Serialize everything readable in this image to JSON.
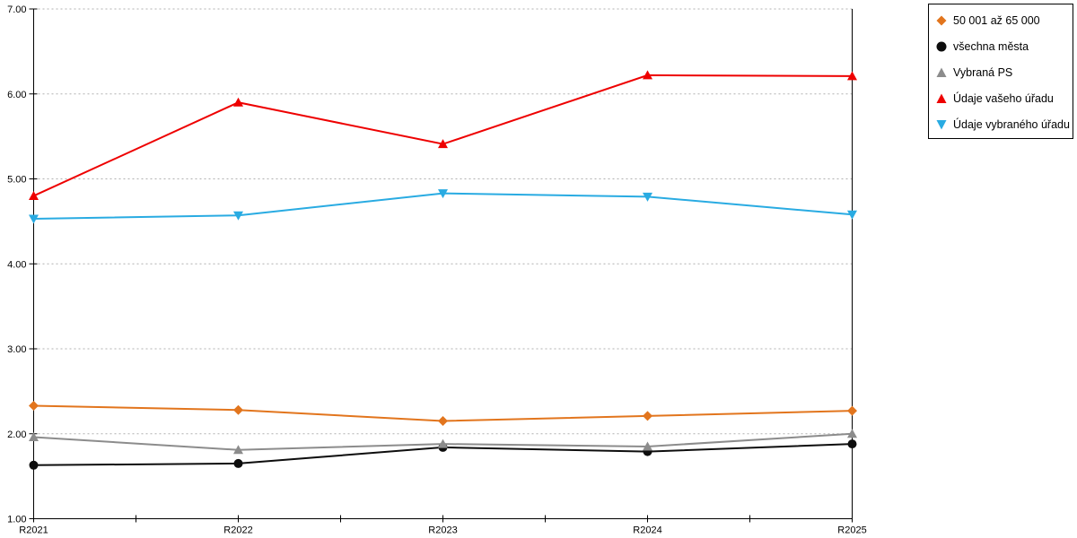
{
  "chart_data": {
    "type": "line",
    "title": "",
    "xlabel": "",
    "ylabel": "",
    "categories": [
      "R2021",
      "R2022",
      "R2023",
      "R2024",
      "R2025"
    ],
    "series": [
      {
        "name": "50 001 až 65 000",
        "marker": "diamond",
        "color": "#E2751D",
        "values": [
          2.33,
          2.28,
          2.15,
          2.21,
          2.27
        ]
      },
      {
        "name": "všechna města",
        "marker": "circle",
        "color": "#0d0d0d",
        "values": [
          1.63,
          1.65,
          1.84,
          1.79,
          1.88
        ]
      },
      {
        "name": "Vybraná PS",
        "marker": "triangle-up",
        "color": "#8C8C8C",
        "values": [
          1.96,
          1.81,
          1.88,
          1.85,
          2.0
        ]
      },
      {
        "name": "Údaje vašeho úřadu",
        "marker": "triangle-up",
        "color": "#EE0000",
        "values": [
          4.8,
          5.9,
          5.41,
          6.22,
          6.21
        ]
      },
      {
        "name": "Údaje vybraného úřadu",
        "marker": "triangle-down",
        "color": "#29ABE2",
        "values": [
          4.53,
          4.57,
          4.83,
          4.79,
          4.58
        ]
      }
    ],
    "ylim": [
      1,
      7
    ],
    "ytick_labels": [
      "1.00",
      "2.00",
      "3.00",
      "4.00",
      "5.00",
      "6.00",
      "7.00"
    ],
    "grid": "horizontal-dotted",
    "grid_color": "#B0B0B0",
    "axis_color": "#000000",
    "legend_position": "outside-top-right"
  }
}
